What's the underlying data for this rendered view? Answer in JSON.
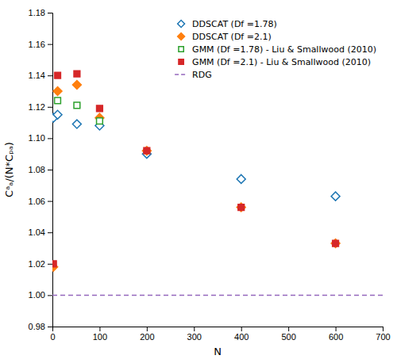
{
  "chart_data": {
    "type": "scatter",
    "xlabel": "N",
    "ylabel": "Cᵃₐ/(N*Cₚₐ)",
    "xlim": [
      0,
      700
    ],
    "ylim": [
      0.98,
      1.18
    ],
    "xticks": [
      0,
      100,
      200,
      300,
      400,
      500,
      600,
      700
    ],
    "yticks": [
      0.98,
      {
        "value": 1.0,
        "label": "1.00"
      },
      1.02,
      1.04,
      1.06,
      1.08,
      {
        "value": 1.1,
        "label": "1.10"
      },
      1.12,
      1.14,
      1.16,
      1.18
    ],
    "legend": "upper right",
    "grid": false,
    "series": [
      {
        "name": "DDSCAT (Df =1.78)",
        "type": "scatter",
        "marker": "open-diamond",
        "x": [
          2,
          11,
          52,
          100,
          200,
          400,
          600
        ],
        "values": [
          1.113,
          1.115,
          1.109,
          1.108,
          1.09,
          1.074,
          1.063
        ]
      },
      {
        "name": "DDSCAT (Df =2.1)",
        "type": "scatter",
        "marker": "filled-diamond",
        "x": [
          2,
          11,
          52,
          100,
          200,
          400,
          600
        ],
        "values": [
          1.018,
          1.13,
          1.134,
          1.113,
          1.092,
          1.056,
          1.033
        ]
      },
      {
        "name": "GMM (Df =1.78) - Liu & Smallwood (2010)",
        "type": "scatter",
        "marker": "open-square",
        "x": [
          11,
          52,
          100
        ],
        "values": [
          1.124,
          1.121,
          1.111
        ]
      },
      {
        "name": "GMM (Df =2.1) - Liu & Smallwood (2010)",
        "type": "scatter",
        "marker": "filled-square",
        "x": [
          2,
          11,
          52,
          100,
          200,
          400,
          600
        ],
        "values": [
          1.02,
          1.14,
          1.141,
          1.119,
          1.092,
          1.056,
          1.033
        ]
      },
      {
        "name": "RDG",
        "type": "hline",
        "line_style": "dashed",
        "values": [
          1.0
        ]
      }
    ]
  }
}
